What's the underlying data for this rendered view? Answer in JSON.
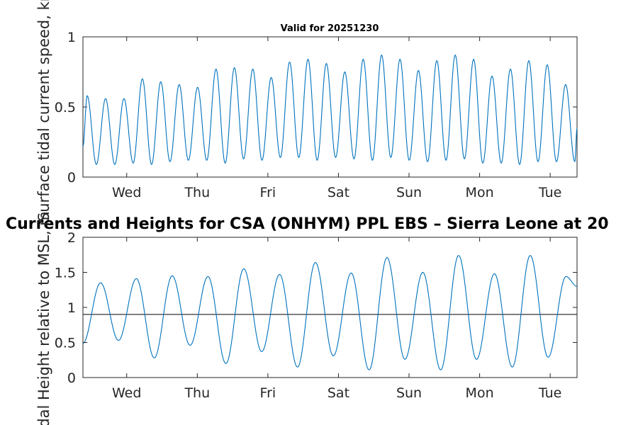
{
  "chart_data": [
    {
      "type": "line",
      "title": "Valid for 20251230",
      "ylabel": "Surface tidal current speed, kn",
      "xlabel": "",
      "ylim": [
        0,
        1
      ],
      "yticks": [
        0,
        0.5,
        1
      ],
      "ytick_labels": [
        "0",
        "0.5",
        "1"
      ],
      "x_domain_days": [
        0,
        7
      ],
      "xticks_days": [
        0.62,
        1.62,
        2.62,
        3.62,
        4.62,
        5.62,
        6.62
      ],
      "xtick_labels": [
        "Wed",
        "Thu",
        "Fri",
        "Sat",
        "Sun",
        "Mon",
        "Tue"
      ],
      "line_color": "#0072bd",
      "series": [
        {
          "name": "current speed",
          "peaks": [
            0.58,
            0.56,
            0.56,
            0.7,
            0.68,
            0.66,
            0.64,
            0.77,
            0.78,
            0.77,
            0.71,
            0.82,
            0.84,
            0.81,
            0.75,
            0.84,
            0.87,
            0.84,
            0.76,
            0.83,
            0.87,
            0.84,
            0.72,
            0.77,
            0.83,
            0.8,
            0.66
          ],
          "troughs": [
            0.09,
            0.09,
            0.1,
            0.09,
            0.11,
            0.12,
            0.12,
            0.1,
            0.13,
            0.12,
            0.14,
            0.14,
            0.12,
            0.14,
            0.13,
            0.12,
            0.14,
            0.12,
            0.11,
            0.12,
            0.13,
            0.1,
            0.1,
            0.09,
            0.11,
            0.11,
            0.11
          ],
          "start_value": 0.22,
          "end_value": 0.35
        }
      ]
    },
    {
      "type": "line",
      "title": "Currents and Heights for CSA (ONHYM) PPL EBS  – Sierra Leone at 20",
      "ylabel": "Tidal Height relative to MSL, m",
      "xlabel": "",
      "ylim": [
        0,
        2
      ],
      "yticks": [
        0,
        0.5,
        1,
        1.5,
        2
      ],
      "ytick_labels": [
        "0",
        "0.5",
        "1",
        "1.5",
        "2"
      ],
      "x_domain_days": [
        0,
        7
      ],
      "xticks_days": [
        0.62,
        1.62,
        2.62,
        3.62,
        4.62,
        5.62,
        6.62
      ],
      "xtick_labels": [
        "Wed",
        "Thu",
        "Fri",
        "Sat",
        "Sun",
        "Mon",
        "Tue"
      ],
      "line_color": "#0072bd",
      "reference_line": {
        "value": 0.9,
        "color": "#333333"
      },
      "series": [
        {
          "name": "tidal height",
          "highs": [
            1.35,
            1.41,
            1.45,
            1.44,
            1.55,
            1.47,
            1.64,
            1.49,
            1.71,
            1.5,
            1.74,
            1.48,
            1.74,
            1.44
          ],
          "lows": [
            0.53,
            0.28,
            0.46,
            0.2,
            0.37,
            0.15,
            0.31,
            0.11,
            0.26,
            0.11,
            0.26,
            0.15,
            0.29
          ],
          "start_value": 0.49,
          "end_value": 1.3
        }
      ]
    }
  ]
}
